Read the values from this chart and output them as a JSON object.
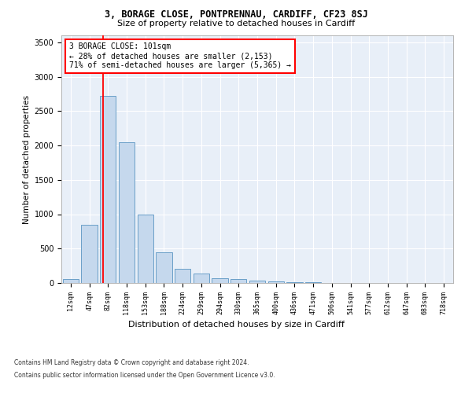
{
  "title1": "3, BORAGE CLOSE, PONTPRENNAU, CARDIFF, CF23 8SJ",
  "title2": "Size of property relative to detached houses in Cardiff",
  "xlabel": "Distribution of detached houses by size in Cardiff",
  "ylabel": "Number of detached properties",
  "categories": [
    "12sqm",
    "47sqm",
    "82sqm",
    "118sqm",
    "153sqm",
    "188sqm",
    "224sqm",
    "259sqm",
    "294sqm",
    "330sqm",
    "365sqm",
    "400sqm",
    "436sqm",
    "471sqm",
    "506sqm",
    "541sqm",
    "577sqm",
    "612sqm",
    "647sqm",
    "683sqm",
    "718sqm"
  ],
  "values": [
    55,
    850,
    2720,
    2050,
    1000,
    450,
    205,
    135,
    72,
    52,
    35,
    18,
    10,
    6,
    4,
    3,
    2,
    1,
    1,
    0,
    0
  ],
  "bar_color": "#c5d8ed",
  "bar_edge_color": "#6a9fc8",
  "red_line_x": 1.72,
  "annotation_line1": "3 BORAGE CLOSE: 101sqm",
  "annotation_line2": "← 28% of detached houses are smaller (2,153)",
  "annotation_line3": "71% of semi-detached houses are larger (5,365) →",
  "footnote1": "Contains HM Land Registry data © Crown copyright and database right 2024.",
  "footnote2": "Contains public sector information licensed under the Open Government Licence v3.0.",
  "ylim": [
    0,
    3600
  ],
  "yticks": [
    0,
    500,
    1000,
    1500,
    2000,
    2500,
    3000,
    3500
  ],
  "plot_bg_color": "#e8eff8"
}
